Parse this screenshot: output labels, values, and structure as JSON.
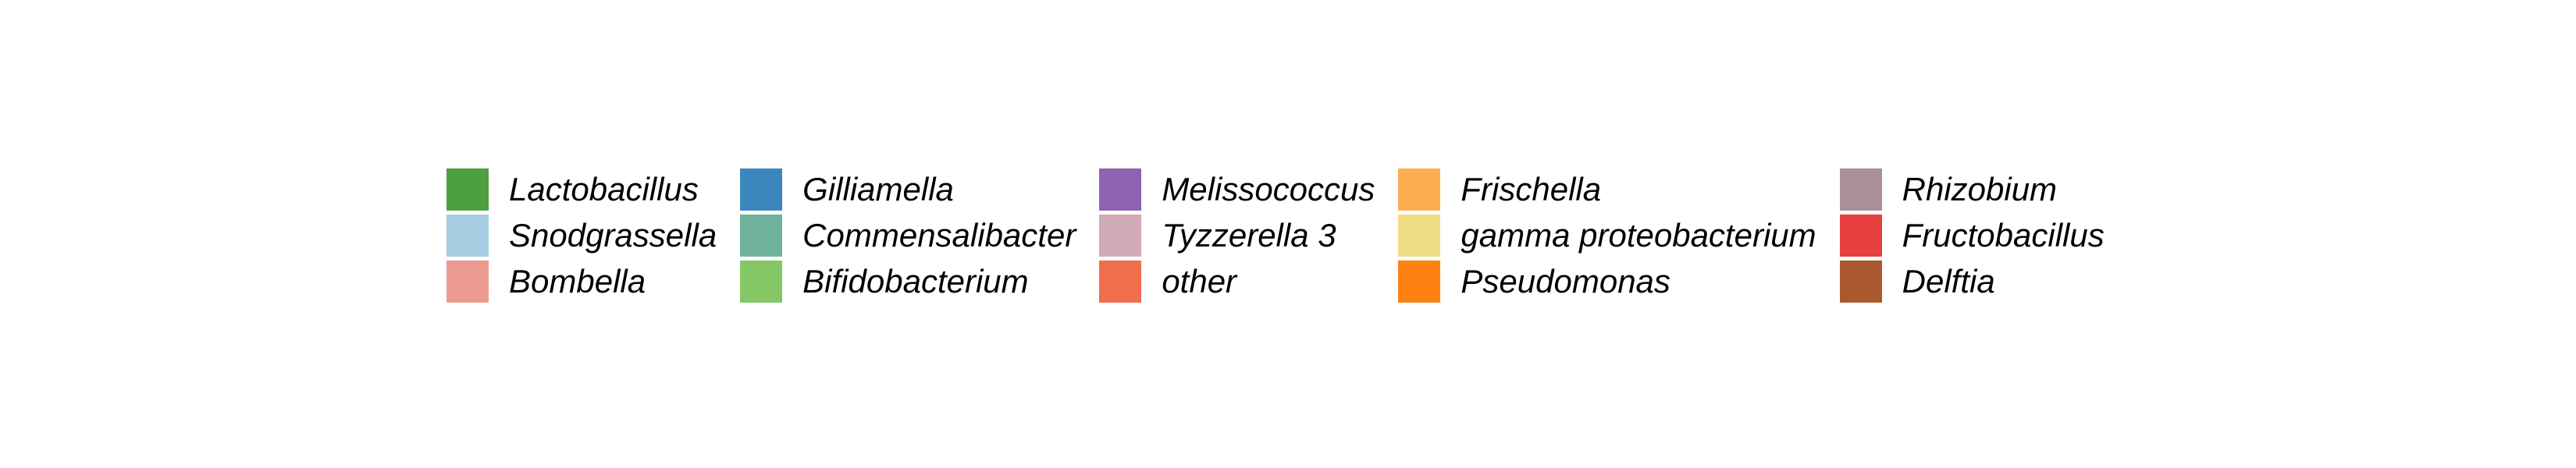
{
  "chart_data": {
    "type": "legend",
    "legend": {
      "placement": "center",
      "columns": 5,
      "rows": 3,
      "entries": [
        {
          "label": "Lactobacillus",
          "color": "#4e9f3d"
        },
        {
          "label": "Snodgrassella",
          "color": "#a6cde2"
        },
        {
          "label": "Bombella",
          "color": "#ec9b90"
        },
        {
          "label": "Gilliamella",
          "color": "#3b87bd"
        },
        {
          "label": "Commensalibacter",
          "color": "#70b29d"
        },
        {
          "label": "Bifidobacterium",
          "color": "#86c765"
        },
        {
          "label": "Melissococcus",
          "color": "#8e63b2"
        },
        {
          "label": "Tyzzerella 3",
          "color": "#d0aab7"
        },
        {
          "label": "other",
          "color": "#f06e4b"
        },
        {
          "label": "Frischella",
          "color": "#fdac50"
        },
        {
          "label": "gamma proteobacterium",
          "color": "#f0dc82"
        },
        {
          "label": "Pseudomonas",
          "color": "#fd8212"
        },
        {
          "label": "Rhizobium",
          "color": "#aa8e98"
        },
        {
          "label": "Fructobacillus",
          "color": "#e93f40"
        },
        {
          "label": "Delftia",
          "color": "#aa582d"
        }
      ]
    }
  }
}
